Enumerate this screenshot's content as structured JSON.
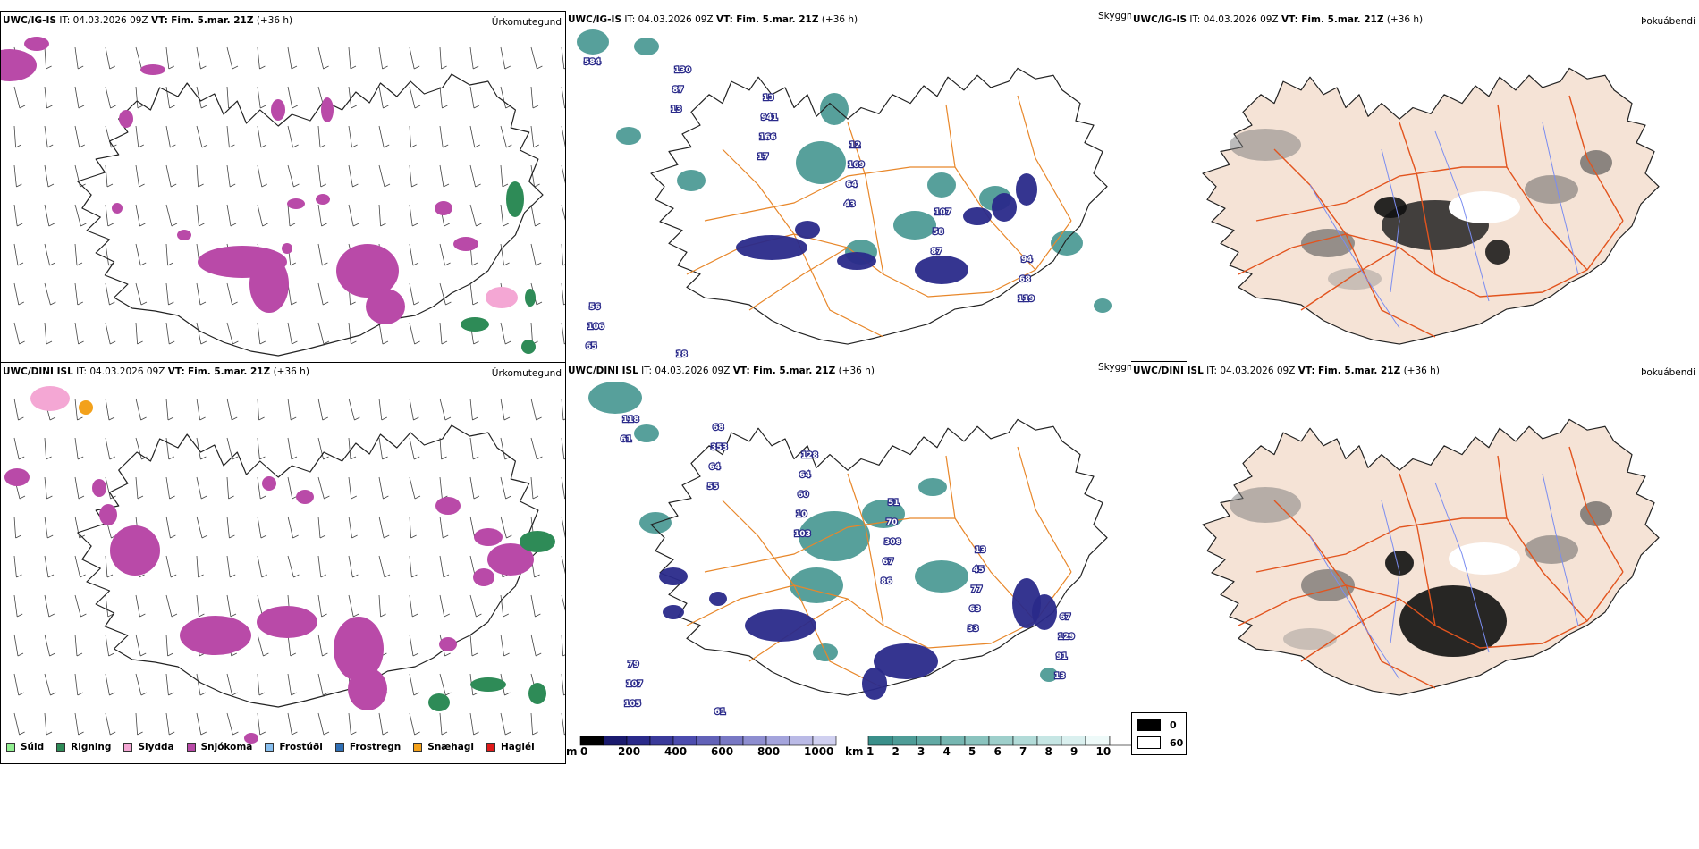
{
  "colors": {
    "precip_types": [
      "#90ee90",
      "#2e8b57",
      "#f4a7d4",
      "#b94aa8",
      "#87bfef",
      "#2f6fb5",
      "#f3a11b",
      "#e01a1a"
    ],
    "cloud_low": "#2a2a8a",
    "cloud_high": "#3a8f8a",
    "land": "#f5e3d6",
    "roads": "#e2541e"
  },
  "rows": [
    {
      "model": "UWC/IG-IS",
      "it_label": "IT:",
      "it_value": "04.03.2026 09Z",
      "vt_label": "VT:",
      "vt_value": "Fim. 5.mar. 21Z",
      "lead": "(+36 h)",
      "panel_titles": [
        "Úrkomutegund",
        "Skyggni",
        "Þokuábendi"
      ],
      "cloud_labels": [
        "584",
        "13",
        "17",
        "43",
        "87",
        "119",
        "65",
        "87",
        "166",
        "64",
        "58",
        "68",
        "106",
        "130",
        "941",
        "169",
        "107",
        "94",
        "56",
        "18",
        "13",
        "12"
      ]
    },
    {
      "model": "UWC/DINI ISL",
      "it_label": "IT:",
      "it_value": "04.03.2026 09Z",
      "vt_label": "VT:",
      "vt_value": "Fim. 5.mar. 21Z",
      "lead": "(+36 h)",
      "panel_titles": [
        "Úrkomutegund",
        "Skyggni",
        "Þokuábendi"
      ],
      "cloud_labels": [
        "61",
        "55",
        "103",
        "86",
        "33",
        "13",
        "118",
        "64",
        "10",
        "67",
        "63",
        "91",
        "105",
        "353",
        "60",
        "308",
        "77",
        "129",
        "107",
        "68",
        "64",
        "70",
        "45",
        "67",
        "79",
        "61",
        "128",
        "51",
        "13"
      ]
    }
  ],
  "precip_legend": [
    "Súld",
    "Rigning",
    "Slydda",
    "Snjókoma",
    "Frostúði",
    "Frostregn",
    "Snæhagl",
    "Haglél"
  ],
  "cloudbase_scale": {
    "unit": "m",
    "ticks": [
      "0",
      "200",
      "400",
      "600",
      "800",
      "1000"
    ]
  },
  "visibility_scale": {
    "unit": "km",
    "ticks": [
      "1",
      "2",
      "3",
      "4",
      "5",
      "6",
      "7",
      "8",
      "9",
      "10"
    ]
  },
  "fog_scale": {
    "values": [
      "0",
      "60"
    ]
  }
}
